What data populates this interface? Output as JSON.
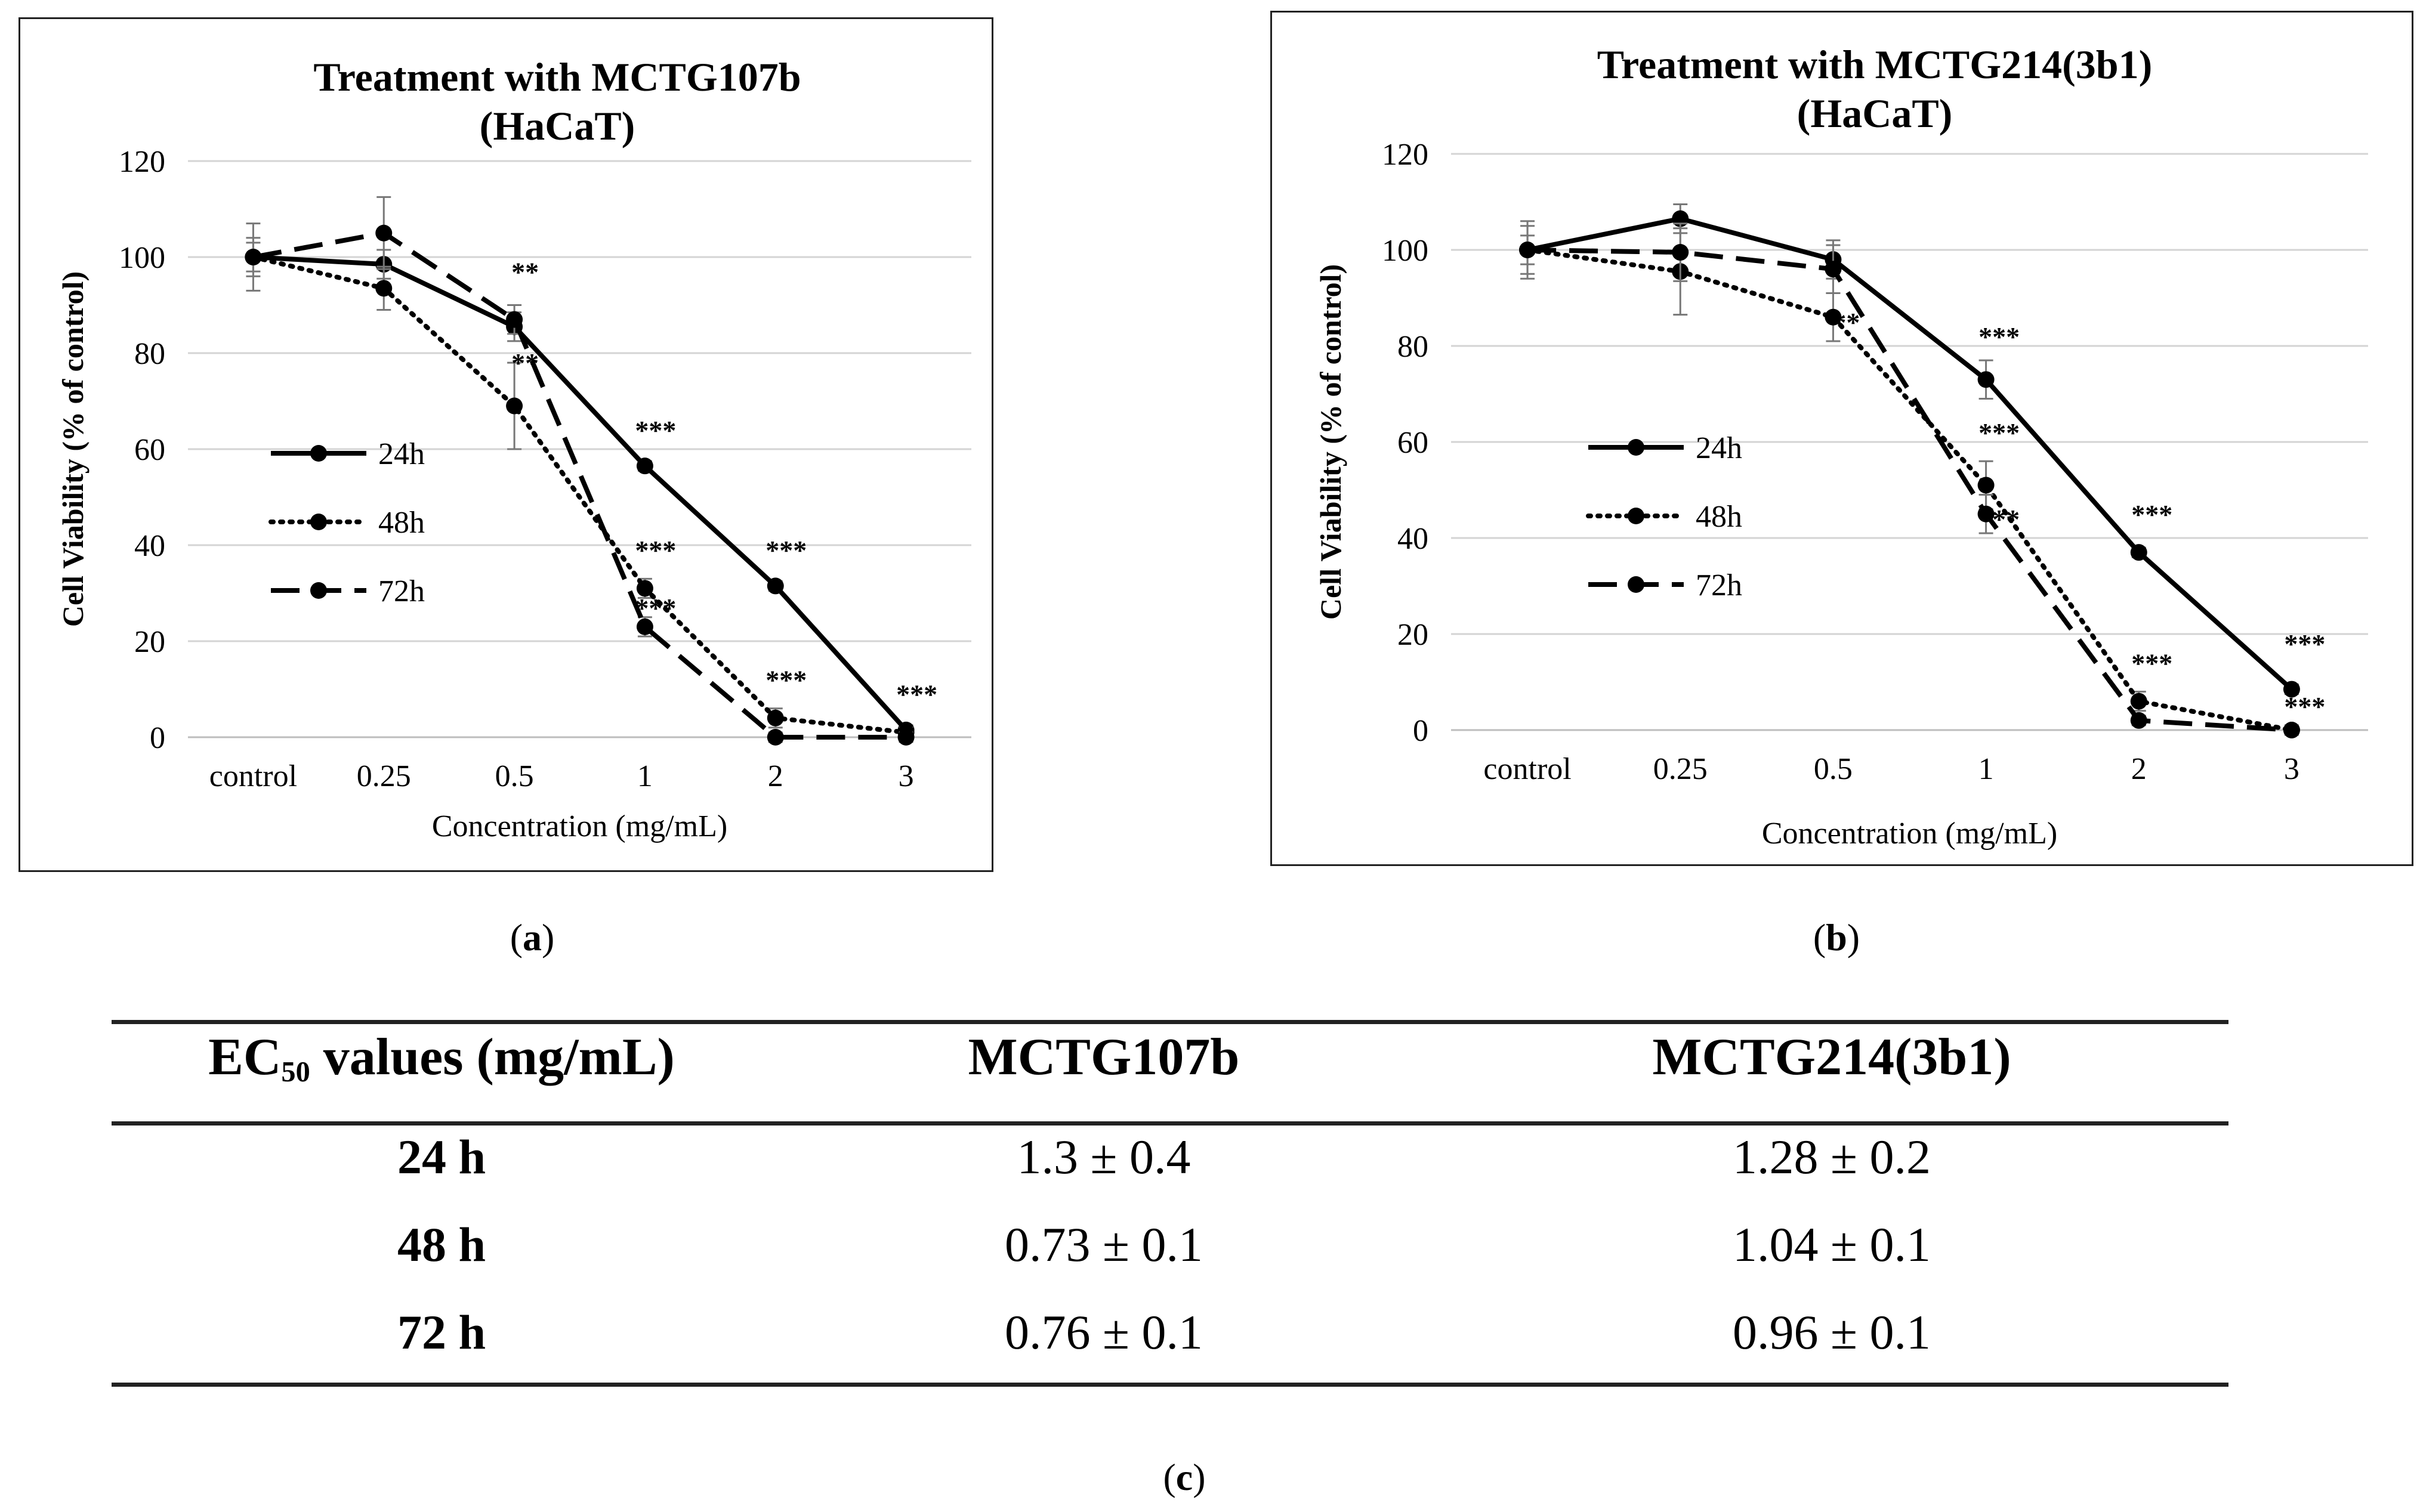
{
  "chart_data": [
    {
      "type": "line",
      "panel": "a",
      "title": "Treatment with MCTG107b",
      "subtitle": "(HaCaT)",
      "xlabel": "Concentration (mg/mL)",
      "ylabel": "Cell Viability (% of control)",
      "categories": [
        "control",
        "0.25",
        "0.5",
        "1",
        "2",
        "3"
      ],
      "ylim": [
        0,
        120
      ],
      "yticks": [
        "0",
        "20",
        "40",
        "60",
        "80",
        "100",
        "120"
      ],
      "grid": true,
      "legend": "center-left",
      "series": [
        {
          "name": "24h",
          "style": "solid",
          "values": [
            100,
            98.5,
            85.5,
            56.5,
            31.5,
            1.5
          ],
          "errors": [
            3,
            3,
            3,
            1,
            1,
            1
          ]
        },
        {
          "name": "48h",
          "style": "dotted",
          "values": [
            100,
            93.5,
            69,
            31,
            4,
            1
          ],
          "errors": [
            4,
            4.5,
            9,
            2,
            2,
            1
          ]
        },
        {
          "name": "72h",
          "style": "dashed",
          "values": [
            100,
            105,
            87,
            23,
            0,
            0
          ],
          "errors": [
            7,
            7.5,
            3,
            2,
            1,
            1
          ]
        }
      ],
      "annotations": [
        {
          "text": "**",
          "x": "0.5",
          "y": 95
        },
        {
          "text": "**",
          "x": "0.5",
          "y": 76
        },
        {
          "text": "***",
          "x": "1",
          "y": 62
        },
        {
          "text": "***",
          "x": "1",
          "y": 37
        },
        {
          "text": "***",
          "x": "1",
          "y": 25
        },
        {
          "text": "***",
          "x": "2",
          "y": 37
        },
        {
          "text": "***",
          "x": "2",
          "y": 10
        },
        {
          "text": "***",
          "x": "3",
          "y": 7
        }
      ]
    },
    {
      "type": "line",
      "panel": "b",
      "title": "Treatment with MCTG214(3b1)",
      "subtitle": "(HaCaT)",
      "xlabel": "Concentration (mg/mL)",
      "ylabel": "Cell Viability (% of control)",
      "categories": [
        "control",
        "0.25",
        "0.5",
        "1",
        "2",
        "3"
      ],
      "ylim": [
        0,
        120
      ],
      "yticks": [
        "0",
        "20",
        "40",
        "60",
        "80",
        "100",
        "120"
      ],
      "grid": true,
      "legend": "center-left",
      "series": [
        {
          "name": "24h",
          "style": "solid",
          "values": [
            100,
            106.5,
            98,
            73,
            37,
            8.5
          ],
          "errors": [
            3,
            3,
            4,
            4,
            1,
            1
          ]
        },
        {
          "name": "48h",
          "style": "dotted",
          "values": [
            100,
            95.5,
            86,
            51,
            6,
            0
          ],
          "errors": [
            5,
            9,
            5,
            5,
            2,
            1
          ]
        },
        {
          "name": "72h",
          "style": "dashed",
          "values": [
            100,
            99.5,
            96,
            45,
            2,
            0
          ],
          "errors": [
            6,
            6,
            5,
            4,
            1,
            1
          ]
        }
      ],
      "annotations": [
        {
          "text": "**",
          "x": "0.5",
          "y": 83
        },
        {
          "text": "***",
          "x": "1",
          "y": 80
        },
        {
          "text": "***",
          "x": "1",
          "y": 60
        },
        {
          "text": "***",
          "x": "1",
          "y": 42
        },
        {
          "text": "***",
          "x": "2",
          "y": 43
        },
        {
          "text": "***",
          "x": "2",
          "y": 12
        },
        {
          "text": "***",
          "x": "3",
          "y": 16
        },
        {
          "text": "***",
          "x": "3",
          "y": 3
        }
      ]
    }
  ],
  "captions": {
    "a": "a",
    "b": "b",
    "c": "c"
  },
  "table": {
    "header": {
      "label_main": "EC",
      "label_sub": "50",
      "label_rest": " values (mg/mL)",
      "col1": "MCTG107b",
      "col2": "MCTG214(3b1)"
    },
    "rows": [
      {
        "label": "24 h",
        "col1": "1.3 ± 0.4",
        "col2": "1.28 ± 0.2"
      },
      {
        "label": "48 h",
        "col1": "0.73 ± 0.1",
        "col2": "1.04 ± 0.1"
      },
      {
        "label": "72 h",
        "col1": "0.76 ± 0.1",
        "col2": "0.96 ± 0.1"
      }
    ]
  }
}
